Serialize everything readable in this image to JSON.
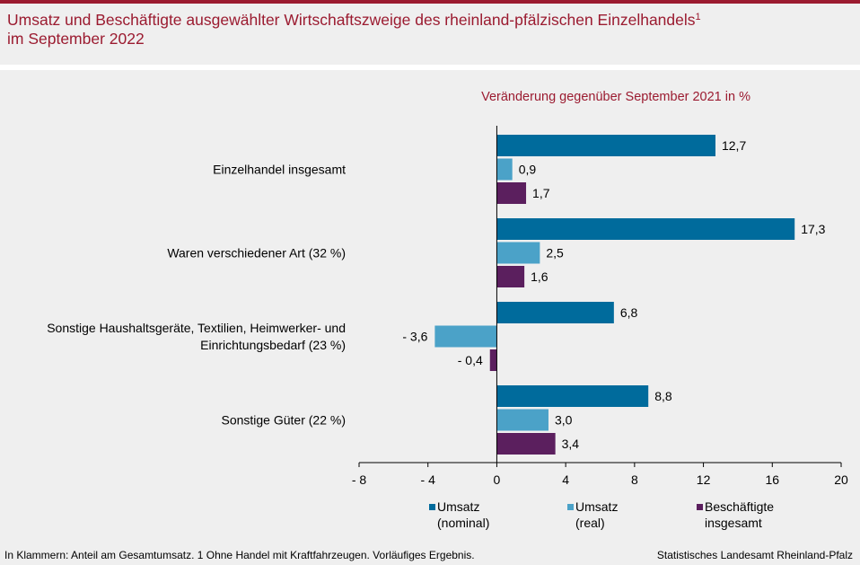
{
  "header": {
    "title_line1": "Umsatz und Beschäftigte ausgewählter Wirtschaftszweige des rheinland-pfälzischen Einzelhandels",
    "title_sup": "1",
    "title_line2": "im September 2022"
  },
  "chart_data": {
    "type": "bar",
    "orientation": "horizontal",
    "subtitle": "Veränderung gegenüber September 2021 in %",
    "categories": [
      [
        "Einzelhandel insgesamt"
      ],
      [
        "Waren verschiedener Art (32 %)"
      ],
      [
        "Sonstige Haushaltsgeräte, Textilien, Heimwerker- und",
        "Einrichtungsbedarf (23 %)"
      ],
      [
        "Sonstige Güter (22 %)"
      ]
    ],
    "series": [
      {
        "name": "Umsatz (nominal)",
        "legend_lines": [
          "Umsatz",
          "(nominal)"
        ],
        "color": "#006b9c",
        "values": [
          12.7,
          17.3,
          6.8,
          8.8
        ],
        "labels": [
          "12,7",
          "17,3",
          "6,8",
          "8,8"
        ]
      },
      {
        "name": "Umsatz (real)",
        "legend_lines": [
          "Umsatz",
          "(real)"
        ],
        "color": "#4ba2c8",
        "values": [
          0.9,
          2.5,
          -3.6,
          3.0
        ],
        "labels": [
          "0,9",
          "2,5",
          "- 3,6",
          "3,0"
        ]
      },
      {
        "name": "Beschäftigte insgesamt",
        "legend_lines": [
          "Beschäftigte",
          "insgesamt"
        ],
        "color": "#5b1f5e",
        "values": [
          1.7,
          1.6,
          -0.4,
          3.4
        ],
        "labels": [
          "1,7",
          "1,6",
          "- 0,4",
          "3,4"
        ]
      }
    ],
    "xlim": [
      -8,
      20
    ],
    "xticks": [
      -8,
      -4,
      0,
      4,
      8,
      12,
      16,
      20
    ],
    "xtick_labels": [
      "- 8",
      "- 4",
      "0",
      "4",
      "8",
      "12",
      "16",
      "20"
    ],
    "legend_position": "bottom"
  },
  "footer": {
    "footnote": "In Klammern: Anteil am Gesamtumsatz. 1 Ohne Handel mit Kraftfahrzeugen. Vorläufiges Ergebnis.",
    "source": "Statistisches Landesamt Rheinland-Pfalz"
  }
}
